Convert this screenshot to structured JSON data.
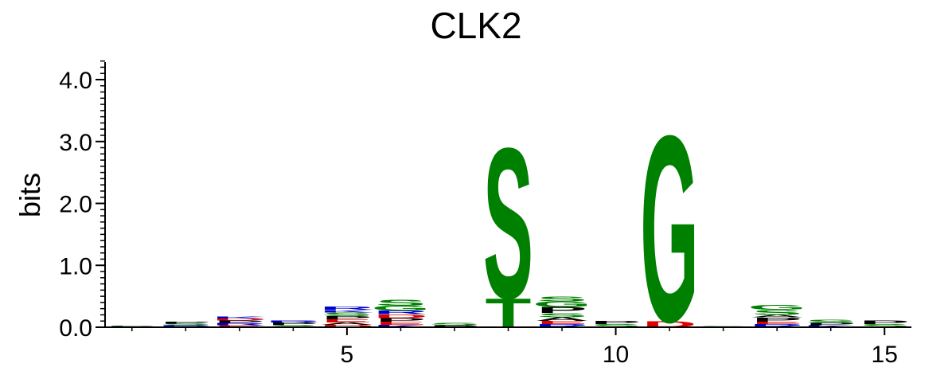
{
  "chart_data": {
    "type": "sequence-logo",
    "title": "CLK2",
    "ylabel": "bits",
    "xlabel": "",
    "ylim": [
      0,
      4.3
    ],
    "xlim": [
      0.5,
      15.5
    ],
    "y_ticks": [
      0,
      1,
      2,
      3,
      4
    ],
    "y_tick_labels": [
      "0.0",
      "1.0",
      "2.0",
      "3.0",
      "4.0"
    ],
    "x_ticks": [
      5,
      10,
      15
    ],
    "x_tick_labels": [
      "5",
      "10",
      "15"
    ],
    "colors": {
      "green": "#008000",
      "black": "#000000",
      "red": "#e00000",
      "blue": "#0000cc",
      "purple": "#cc00cc"
    },
    "positions": [
      {
        "pos": 1,
        "letters": [
          {
            "char": "S",
            "bits": 0.02,
            "color": "green"
          },
          {
            "char": "P",
            "bits": 0.01,
            "color": "black"
          }
        ]
      },
      {
        "pos": 2,
        "letters": [
          {
            "char": "R",
            "bits": 0.03,
            "color": "blue"
          },
          {
            "char": "S",
            "bits": 0.03,
            "color": "green"
          },
          {
            "char": "P",
            "bits": 0.03,
            "color": "black"
          }
        ]
      },
      {
        "pos": 3,
        "letters": [
          {
            "char": "E",
            "bits": 0.03,
            "color": "red"
          },
          {
            "char": "R",
            "bits": 0.04,
            "color": "blue"
          },
          {
            "char": "P",
            "bits": 0.04,
            "color": "black"
          },
          {
            "char": "D",
            "bits": 0.03,
            "color": "red"
          },
          {
            "char": "K",
            "bits": 0.03,
            "color": "blue"
          }
        ]
      },
      {
        "pos": 4,
        "letters": [
          {
            "char": "S",
            "bits": 0.04,
            "color": "green"
          },
          {
            "char": "P",
            "bits": 0.04,
            "color": "black"
          },
          {
            "char": "R",
            "bits": 0.03,
            "color": "blue"
          }
        ]
      },
      {
        "pos": 5,
        "letters": [
          {
            "char": "D",
            "bits": 0.04,
            "color": "red"
          },
          {
            "char": "A",
            "bits": 0.04,
            "color": "black"
          },
          {
            "char": "E",
            "bits": 0.05,
            "color": "red"
          },
          {
            "char": "P",
            "bits": 0.05,
            "color": "black"
          },
          {
            "char": "S",
            "bits": 0.06,
            "color": "green"
          },
          {
            "char": "K",
            "bits": 0.04,
            "color": "blue"
          },
          {
            "char": "R",
            "bits": 0.05,
            "color": "blue"
          }
        ]
      },
      {
        "pos": 6,
        "letters": [
          {
            "char": "K",
            "bits": 0.04,
            "color": "blue"
          },
          {
            "char": "E",
            "bits": 0.05,
            "color": "red"
          },
          {
            "char": "P",
            "bits": 0.06,
            "color": "black"
          },
          {
            "char": "D",
            "bits": 0.06,
            "color": "red"
          },
          {
            "char": "R",
            "bits": 0.06,
            "color": "blue"
          },
          {
            "char": "G",
            "bits": 0.08,
            "color": "green"
          },
          {
            "char": "S",
            "bits": 0.1,
            "color": "green"
          }
        ]
      },
      {
        "pos": 7,
        "letters": [
          {
            "char": "P",
            "bits": 0.03,
            "color": "black"
          },
          {
            "char": "S",
            "bits": 0.04,
            "color": "green"
          }
        ]
      },
      {
        "pos": 8,
        "letters": [
          {
            "char": "T",
            "bits": 0.48,
            "color": "green"
          },
          {
            "char": "S",
            "bits": 2.5,
            "color": "green"
          }
        ]
      },
      {
        "pos": 9,
        "letters": [
          {
            "char": "R",
            "bits": 0.05,
            "color": "blue"
          },
          {
            "char": "E",
            "bits": 0.05,
            "color": "red"
          },
          {
            "char": "A",
            "bits": 0.06,
            "color": "black"
          },
          {
            "char": "S",
            "bits": 0.07,
            "color": "green"
          },
          {
            "char": "P",
            "bits": 0.1,
            "color": "black"
          },
          {
            "char": "G",
            "bits": 0.09,
            "color": "green"
          },
          {
            "char": "S",
            "bits": 0.08,
            "color": "green"
          }
        ]
      },
      {
        "pos": 10,
        "letters": [
          {
            "char": "S",
            "bits": 0.05,
            "color": "green"
          },
          {
            "char": "P",
            "bits": 0.05,
            "color": "black"
          }
        ]
      },
      {
        "pos": 11,
        "letters": [
          {
            "char": "D",
            "bits": 0.1,
            "color": "red"
          },
          {
            "char": "G",
            "bits": 3.1,
            "color": "green"
          }
        ]
      },
      {
        "pos": 12,
        "letters": [
          {
            "char": "S",
            "bits": 0.02,
            "color": "green"
          }
        ]
      },
      {
        "pos": 13,
        "letters": [
          {
            "char": "R",
            "bits": 0.05,
            "color": "blue"
          },
          {
            "char": "E",
            "bits": 0.04,
            "color": "red"
          },
          {
            "char": "P",
            "bits": 0.07,
            "color": "black"
          },
          {
            "char": "A",
            "bits": 0.04,
            "color": "black"
          },
          {
            "char": "S",
            "bits": 0.08,
            "color": "green"
          },
          {
            "char": "G",
            "bits": 0.08,
            "color": "green"
          }
        ]
      },
      {
        "pos": 14,
        "letters": [
          {
            "char": "K",
            "bits": 0.03,
            "color": "blue"
          },
          {
            "char": "P",
            "bits": 0.04,
            "color": "black"
          },
          {
            "char": "S",
            "bits": 0.05,
            "color": "green"
          }
        ]
      },
      {
        "pos": 15,
        "letters": [
          {
            "char": "S",
            "bits": 0.05,
            "color": "green"
          },
          {
            "char": "P",
            "bits": 0.06,
            "color": "black"
          }
        ]
      }
    ]
  }
}
